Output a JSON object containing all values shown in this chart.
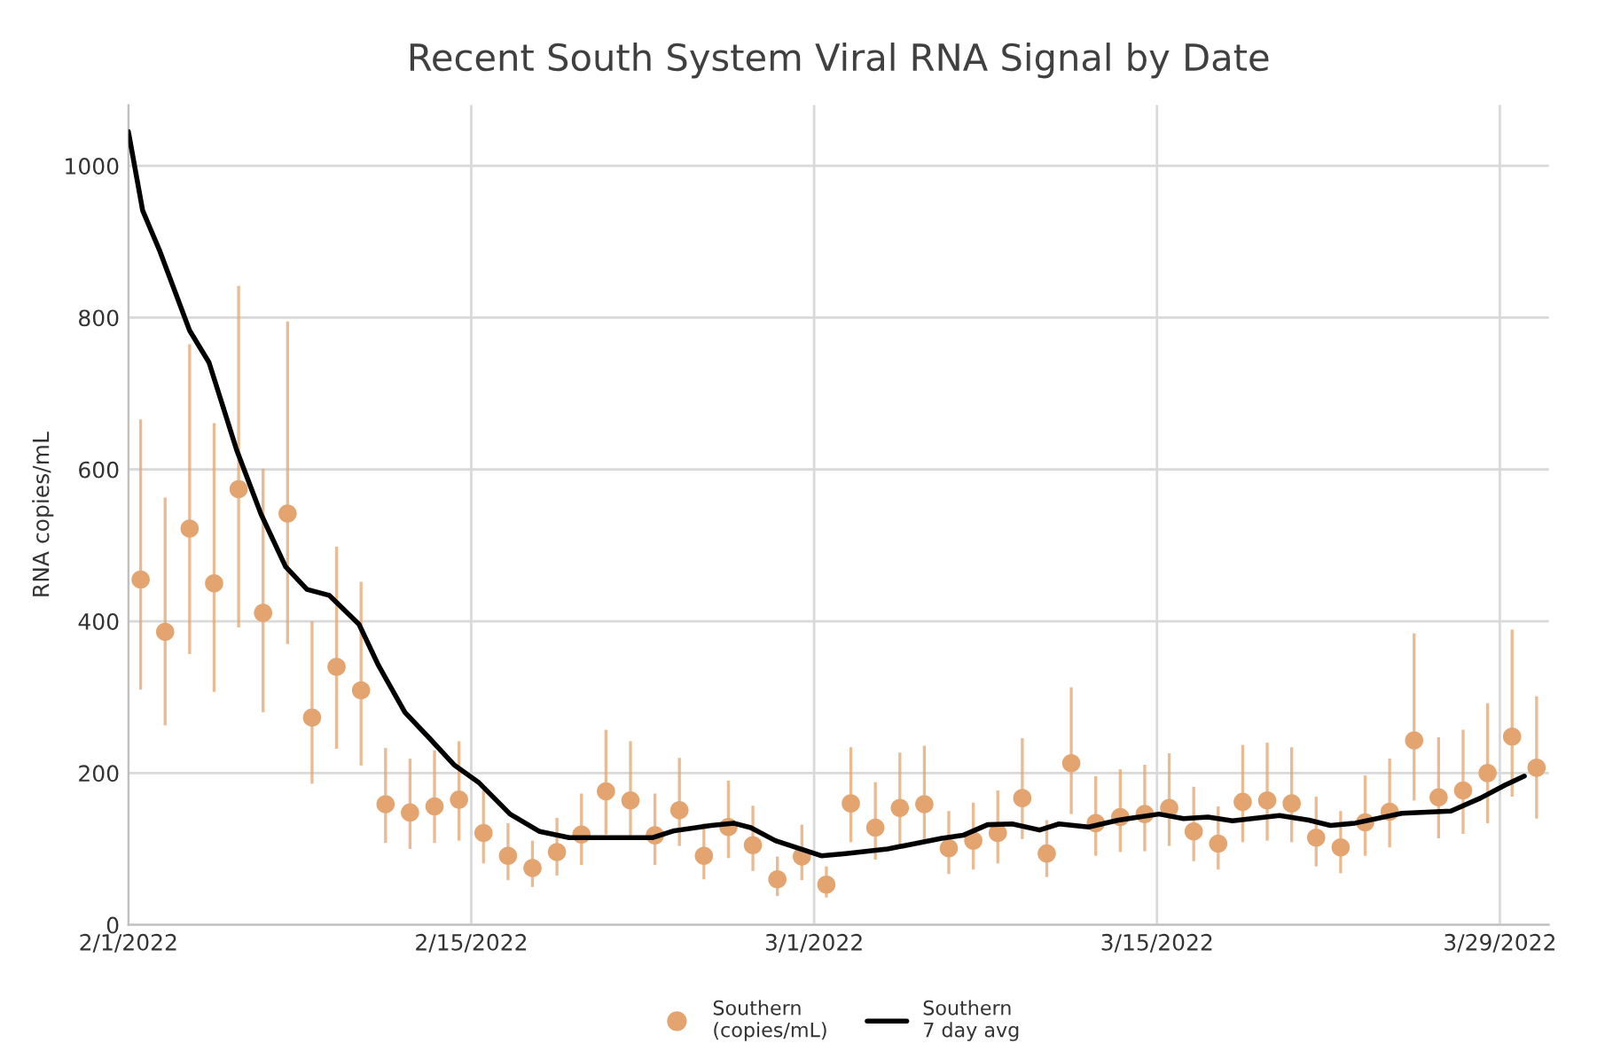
{
  "chart_data": {
    "type": "scatter",
    "title": "Recent South System Viral RNA Signal by Date",
    "ylabel": "RNA copies/mL",
    "xlim": [
      "2022-02-01",
      "2022-03-31"
    ],
    "xticks": [
      {
        "value": "2022-02-01",
        "label": "2/1/2022"
      },
      {
        "value": "2022-02-15",
        "label": "2/15/2022"
      },
      {
        "value": "2022-03-01",
        "label": "3/1/2022"
      },
      {
        "value": "2022-03-15",
        "label": "3/15/2022"
      },
      {
        "value": "2022-03-29",
        "label": "3/29/2022"
      }
    ],
    "ylim": [
      0,
      1080
    ],
    "yticks": [
      0,
      200,
      400,
      600,
      800,
      1000
    ],
    "grid": true,
    "legend": "bottom",
    "series": [
      {
        "name": "Southern\n(copies/mL)",
        "color": "#e3a46f",
        "marker": "circle",
        "x": [
          "2022-02-01T12:00",
          "2022-02-02T12:00",
          "2022-02-03T12:00",
          "2022-02-04T12:00",
          "2022-02-05T12:00",
          "2022-02-06T12:00",
          "2022-02-07T12:00",
          "2022-02-08T12:00",
          "2022-02-09T12:00",
          "2022-02-10T12:00",
          "2022-02-11T12:00",
          "2022-02-12T12:00",
          "2022-02-13T12:00",
          "2022-02-14T12:00",
          "2022-02-15T12:00",
          "2022-02-16T12:00",
          "2022-02-17T12:00",
          "2022-02-18T12:00",
          "2022-02-19T12:00",
          "2022-02-20T12:00",
          "2022-02-21T12:00",
          "2022-02-22T12:00",
          "2022-02-23T12:00",
          "2022-02-24T12:00",
          "2022-02-25T12:00",
          "2022-02-26T12:00",
          "2022-02-27T12:00",
          "2022-02-28T12:00",
          "2022-03-01T12:00",
          "2022-03-02T12:00",
          "2022-03-03T12:00",
          "2022-03-04T12:00",
          "2022-03-05T12:00",
          "2022-03-06T12:00",
          "2022-03-07T12:00",
          "2022-03-08T12:00",
          "2022-03-09T12:00",
          "2022-03-10T12:00",
          "2022-03-11T12:00",
          "2022-03-12T12:00",
          "2022-03-13T12:00",
          "2022-03-14T12:00",
          "2022-03-15T12:00",
          "2022-03-16T12:00",
          "2022-03-17T12:00",
          "2022-03-18T12:00",
          "2022-03-19T12:00",
          "2022-03-20T12:00",
          "2022-03-21T12:00",
          "2022-03-22T12:00",
          "2022-03-23T12:00",
          "2022-03-24T12:00",
          "2022-03-25T12:00",
          "2022-03-26T12:00",
          "2022-03-27T12:00",
          "2022-03-28T12:00",
          "2022-03-29T12:00",
          "2022-03-30T12:00"
        ],
        "values": [
          455,
          386,
          522,
          450,
          574,
          411,
          542,
          273,
          340,
          309,
          159,
          148,
          156,
          165,
          121,
          91,
          75,
          96,
          119,
          176,
          164,
          118,
          151,
          91,
          129,
          105,
          60,
          90,
          53,
          160,
          128,
          154,
          159,
          101,
          111,
          121,
          167,
          94,
          213,
          134,
          142,
          146,
          154,
          123,
          107,
          162,
          164,
          160,
          115,
          102,
          135,
          149,
          243,
          168,
          177,
          200,
          248,
          207
        ],
        "errors": [
          [
            310,
            666
          ],
          [
            263,
            563
          ],
          [
            357,
            765
          ],
          [
            307,
            661
          ],
          [
            392,
            842
          ],
          [
            280,
            601
          ],
          [
            370,
            795
          ],
          [
            186,
            400
          ],
          [
            232,
            498
          ],
          [
            210,
            452
          ],
          [
            108,
            233
          ],
          [
            100,
            219
          ],
          [
            108,
            230
          ],
          [
            111,
            242
          ],
          [
            81,
            177
          ],
          [
            59,
            134
          ],
          [
            50,
            111
          ],
          [
            65,
            141
          ],
          [
            79,
            173
          ],
          [
            119,
            257
          ],
          [
            117,
            242
          ],
          [
            79,
            173
          ],
          [
            104,
            220
          ],
          [
            60,
            134
          ],
          [
            88,
            190
          ],
          [
            71,
            157
          ],
          [
            38,
            90
          ],
          [
            59,
            132
          ],
          [
            36,
            77
          ],
          [
            109,
            234
          ],
          [
            86,
            188
          ],
          [
            104,
            227
          ],
          [
            108,
            236
          ],
          [
            67,
            150
          ],
          [
            73,
            161
          ],
          [
            81,
            177
          ],
          [
            113,
            246
          ],
          [
            63,
            138
          ],
          [
            146,
            313
          ],
          [
            91,
            196
          ],
          [
            96,
            205
          ],
          [
            97,
            211
          ],
          [
            104,
            226
          ],
          [
            84,
            182
          ],
          [
            73,
            156
          ],
          [
            109,
            237
          ],
          [
            111,
            240
          ],
          [
            109,
            234
          ],
          [
            77,
            169
          ],
          [
            68,
            150
          ],
          [
            91,
            197
          ],
          [
            102,
            219
          ],
          [
            164,
            384
          ],
          [
            114,
            247
          ],
          [
            120,
            257
          ],
          [
            134,
            292
          ],
          [
            169,
            389
          ],
          [
            140,
            301
          ]
        ]
      },
      {
        "type": "line",
        "name": "Southern\n7 day avg",
        "color": "#000000",
        "line_style": "solid",
        "marker": "none",
        "x": [
          "2022-02-01T00:00",
          "2022-02-01T14:00",
          "2022-02-02T07:00",
          "2022-02-03T12:00",
          "2022-02-04T07:00",
          "2022-02-05T10:00",
          "2022-02-06T10:00",
          "2022-02-07T10:00",
          "2022-02-08T07:00",
          "2022-02-09T05:00",
          "2022-02-10T10:00",
          "2022-02-11T05:00",
          "2022-02-12T07:00",
          "2022-02-13T07:00",
          "2022-02-14T07:00",
          "2022-02-15T07:00",
          "2022-02-16T14:00",
          "2022-02-17T19:00",
          "2022-02-19T00:00",
          "2022-02-22T10:00",
          "2022-02-23T07:00",
          "2022-02-24T19:00",
          "2022-02-25T17:00",
          "2022-02-26T10:00",
          "2022-02-27T10:00",
          "2022-03-01T07:00",
          "2022-03-02T07:00",
          "2022-03-04T00:00",
          "2022-03-06T05:00",
          "2022-03-07T02:00",
          "2022-03-08T02:00",
          "2022-03-09T02:00",
          "2022-03-10T05:00",
          "2022-03-11T00:00",
          "2022-03-12T05:00",
          "2022-03-13T10:00",
          "2022-03-15T02:00",
          "2022-03-16T02:00",
          "2022-03-17T02:00",
          "2022-03-18T02:00",
          "2022-03-20T00:00",
          "2022-03-21T05:00",
          "2022-03-22T02:00",
          "2022-03-23T02:00",
          "2022-03-25T00:00",
          "2022-03-27T00:00",
          "2022-03-28T05:00",
          "2022-03-29T05:00",
          "2022-03-30T00:00"
        ],
        "values": [
          1045,
          941,
          887,
          783,
          741,
          626,
          541,
          472,
          442,
          434,
          396,
          342,
          280,
          246,
          211,
          188,
          146,
          123,
          115,
          115,
          124,
          131,
          134,
          128,
          111,
          91,
          94,
          100,
          114,
          118,
          132,
          133,
          125,
          133,
          129,
          138,
          146,
          140,
          142,
          137,
          144,
          138,
          131,
          134,
          147,
          150,
          167,
          184,
          196
        ]
      }
    ]
  }
}
